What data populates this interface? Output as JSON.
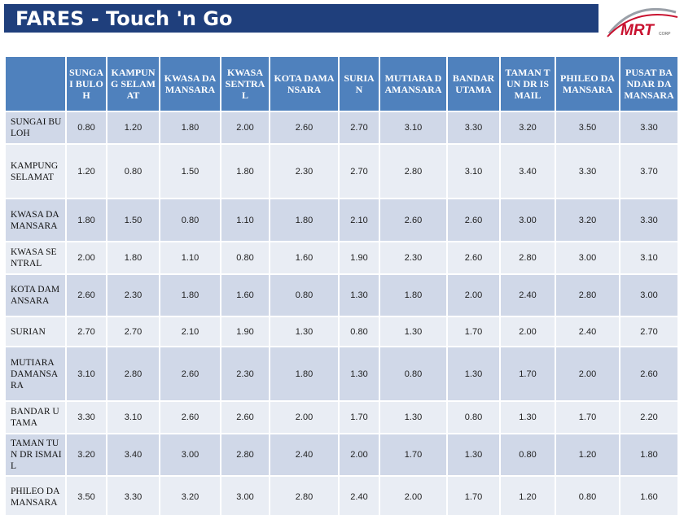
{
  "header": {
    "title": "FARES - Touch 'n Go",
    "logo": {
      "text": "MRT",
      "sub": "CORP"
    }
  },
  "table": {
    "columns": [
      "SUNGAI BULOH",
      "KAMPUNG SELAMAT",
      "KWASA DAMANSARA",
      "KWASA SENTRAL",
      "KOTA DAMANSARA",
      "SURIAN",
      "MUTIARA DAMANSARA",
      "BANDAR UTAMA",
      "TAMAN TUN DR ISMAIL",
      "PHILEO DAMANSARA",
      "PUSAT BANDAR DAMANSARA"
    ],
    "rows": [
      {
        "label": "SUNGAI BULOH",
        "values": [
          "0.80",
          "1.20",
          "1.80",
          "2.00",
          "2.60",
          "2.70",
          "3.10",
          "3.30",
          "3.20",
          "3.50",
          "3.30"
        ]
      },
      {
        "label": "KAMPUNG SELAMAT",
        "values": [
          "1.20",
          "0.80",
          "1.50",
          "1.80",
          "2.30",
          "2.70",
          "2.80",
          "3.10",
          "3.40",
          "3.30",
          "3.70"
        ]
      },
      {
        "label": "KWASA DAMANSARA",
        "values": [
          "1.80",
          "1.50",
          "0.80",
          "1.10",
          "1.80",
          "2.10",
          "2.60",
          "2.60",
          "3.00",
          "3.20",
          "3.30"
        ]
      },
      {
        "label": "KWASA SENTRAL",
        "values": [
          "2.00",
          "1.80",
          "1.10",
          "0.80",
          "1.60",
          "1.90",
          "2.30",
          "2.60",
          "2.80",
          "3.00",
          "3.10"
        ]
      },
      {
        "label": "KOTA DAMANSARA",
        "values": [
          "2.60",
          "2.30",
          "1.80",
          "1.60",
          "0.80",
          "1.30",
          "1.80",
          "2.00",
          "2.40",
          "2.80",
          "3.00"
        ]
      },
      {
        "label": "SURIAN",
        "values": [
          "2.70",
          "2.70",
          "2.10",
          "1.90",
          "1.30",
          "0.80",
          "1.30",
          "1.70",
          "2.00",
          "2.40",
          "2.70"
        ]
      },
      {
        "label": "MUTIARA DAMANSARA",
        "values": [
          "3.10",
          "2.80",
          "2.60",
          "2.30",
          "1.80",
          "1.30",
          "0.80",
          "1.30",
          "1.70",
          "2.00",
          "2.60"
        ]
      },
      {
        "label": "BANDAR UTAMA",
        "values": [
          "3.30",
          "3.10",
          "2.60",
          "2.60",
          "2.00",
          "1.70",
          "1.30",
          "0.80",
          "1.30",
          "1.70",
          "2.20"
        ]
      },
      {
        "label": "TAMAN TUN DR ISMAIL",
        "values": [
          "3.20",
          "3.40",
          "3.00",
          "2.80",
          "2.40",
          "2.00",
          "1.70",
          "1.30",
          "0.80",
          "1.20",
          "1.80"
        ]
      },
      {
        "label": "PHILEO DAMANSARA",
        "values": [
          "3.50",
          "3.30",
          "3.20",
          "3.00",
          "2.80",
          "2.40",
          "2.00",
          "1.70",
          "1.20",
          "0.80",
          "1.60"
        ]
      }
    ]
  }
}
